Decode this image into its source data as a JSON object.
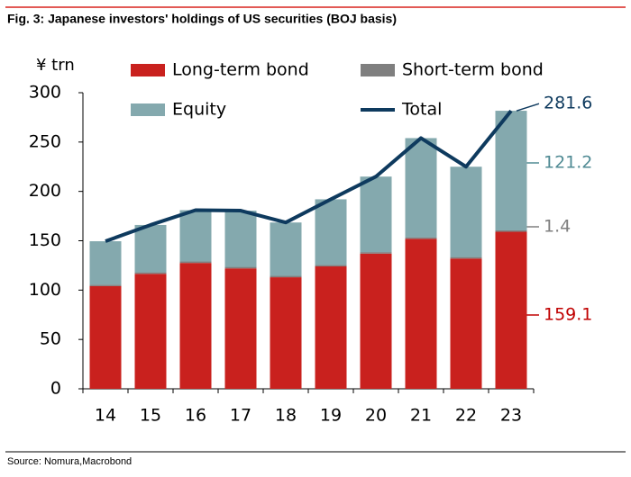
{
  "chart_data": {
    "type": "stacked-bar-line",
    "title": "Fig. 3: Japanese investors' holdings of US securities (BOJ basis)",
    "y_label": "¥ trn",
    "source": "Source: Nomura,Macrobond",
    "categories": [
      "14",
      "15",
      "16",
      "17",
      "18",
      "19",
      "20",
      "21",
      "22",
      "23"
    ],
    "series": [
      {
        "name": "Long-term bond",
        "color": "#c9211e",
        "label_color": "#c00000",
        "values": [
          104,
          116.5,
          127.5,
          122,
          113,
          124,
          137,
          152,
          132,
          159.1
        ]
      },
      {
        "name": "Short-term bond",
        "color": "#7f7f7f",
        "label_color": "#7f7f7f",
        "values": [
          1.5,
          1.5,
          1.5,
          1.5,
          1.5,
          1.5,
          1.5,
          1.5,
          1.5,
          1.4
        ]
      },
      {
        "name": "Equity",
        "color": "#84a9ae",
        "label_color": "#4f8a93",
        "values": [
          44,
          48,
          52,
          57,
          54,
          66.5,
          76.5,
          100.5,
          91.5,
          121.2
        ]
      },
      {
        "name": "Total",
        "color": "#0e3a5e",
        "label_color": "#0e3a5e",
        "line": true,
        "values": [
          149.5,
          166,
          181,
          180.5,
          168.5,
          192,
          215,
          254,
          225,
          281.6
        ]
      }
    ],
    "ylim": [
      0,
      300
    ],
    "yticks": [
      0,
      50,
      100,
      150,
      200,
      250,
      300
    ]
  }
}
